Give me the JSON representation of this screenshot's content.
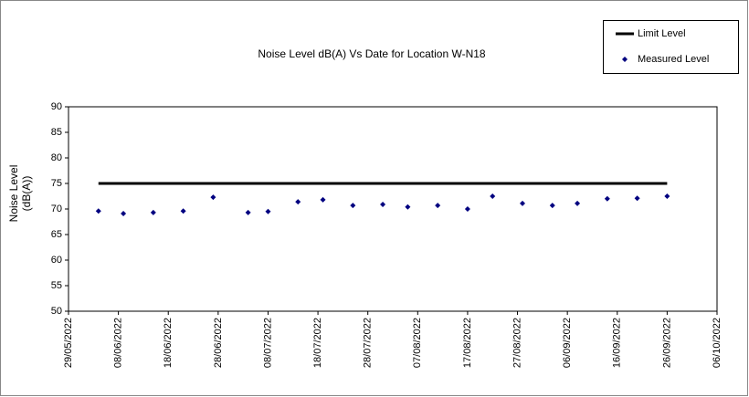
{
  "chart_data": {
    "type": "scatter",
    "title": "Noise Level dB(A) Vs Date for Location W-N18",
    "ylabel": [
      "Noise Level",
      "(dB(A))"
    ],
    "series": [
      {
        "name": "Limit Level",
        "kind": "line",
        "color": "#000000",
        "x": [
          "2022-06-04",
          "2022-09-26"
        ],
        "values": [
          75,
          75
        ]
      },
      {
        "name": "Measured Level",
        "kind": "points",
        "color": "#000080",
        "x": [
          "2022-06-04",
          "2022-06-09",
          "2022-06-15",
          "2022-06-21",
          "2022-06-27",
          "2022-07-04",
          "2022-07-08",
          "2022-07-14",
          "2022-07-19",
          "2022-07-25",
          "2022-07-31",
          "2022-08-05",
          "2022-08-11",
          "2022-08-17",
          "2022-08-22",
          "2022-08-28",
          "2022-09-03",
          "2022-09-08",
          "2022-09-14",
          "2022-09-20",
          "2022-09-26"
        ],
        "values": [
          69.6,
          69.1,
          69.3,
          69.6,
          72.3,
          69.3,
          69.5,
          71.4,
          71.8,
          70.7,
          70.9,
          70.4,
          70.7,
          70.0,
          72.5,
          71.1,
          70.7,
          71.1,
          72.0,
          72.1,
          72.5
        ]
      }
    ],
    "xlim": [
      "2022-05-29",
      "2022-10-06"
    ],
    "xticks": [
      {
        "value": "2022-05-29",
        "label": "29/05/2022"
      },
      {
        "value": "2022-06-08",
        "label": "08/06/2022"
      },
      {
        "value": "2022-06-18",
        "label": "18/06/2022"
      },
      {
        "value": "2022-06-28",
        "label": "28/06/2022"
      },
      {
        "value": "2022-07-08",
        "label": "08/07/2022"
      },
      {
        "value": "2022-07-18",
        "label": "18/07/2022"
      },
      {
        "value": "2022-07-28",
        "label": "28/07/2022"
      },
      {
        "value": "2022-08-07",
        "label": "07/08/2022"
      },
      {
        "value": "2022-08-17",
        "label": "17/08/2022"
      },
      {
        "value": "2022-08-27",
        "label": "27/08/2022"
      },
      {
        "value": "2022-09-06",
        "label": "06/09/2022"
      },
      {
        "value": "2022-09-16",
        "label": "16/09/2022"
      },
      {
        "value": "2022-09-26",
        "label": "26/09/2022"
      },
      {
        "value": "2022-10-06",
        "label": "06/10/2022"
      }
    ],
    "ylim": [
      50,
      90
    ],
    "yticks": [
      50,
      55,
      60,
      65,
      70,
      75,
      80,
      85,
      90
    ],
    "grid": false,
    "legend": "top-right"
  }
}
